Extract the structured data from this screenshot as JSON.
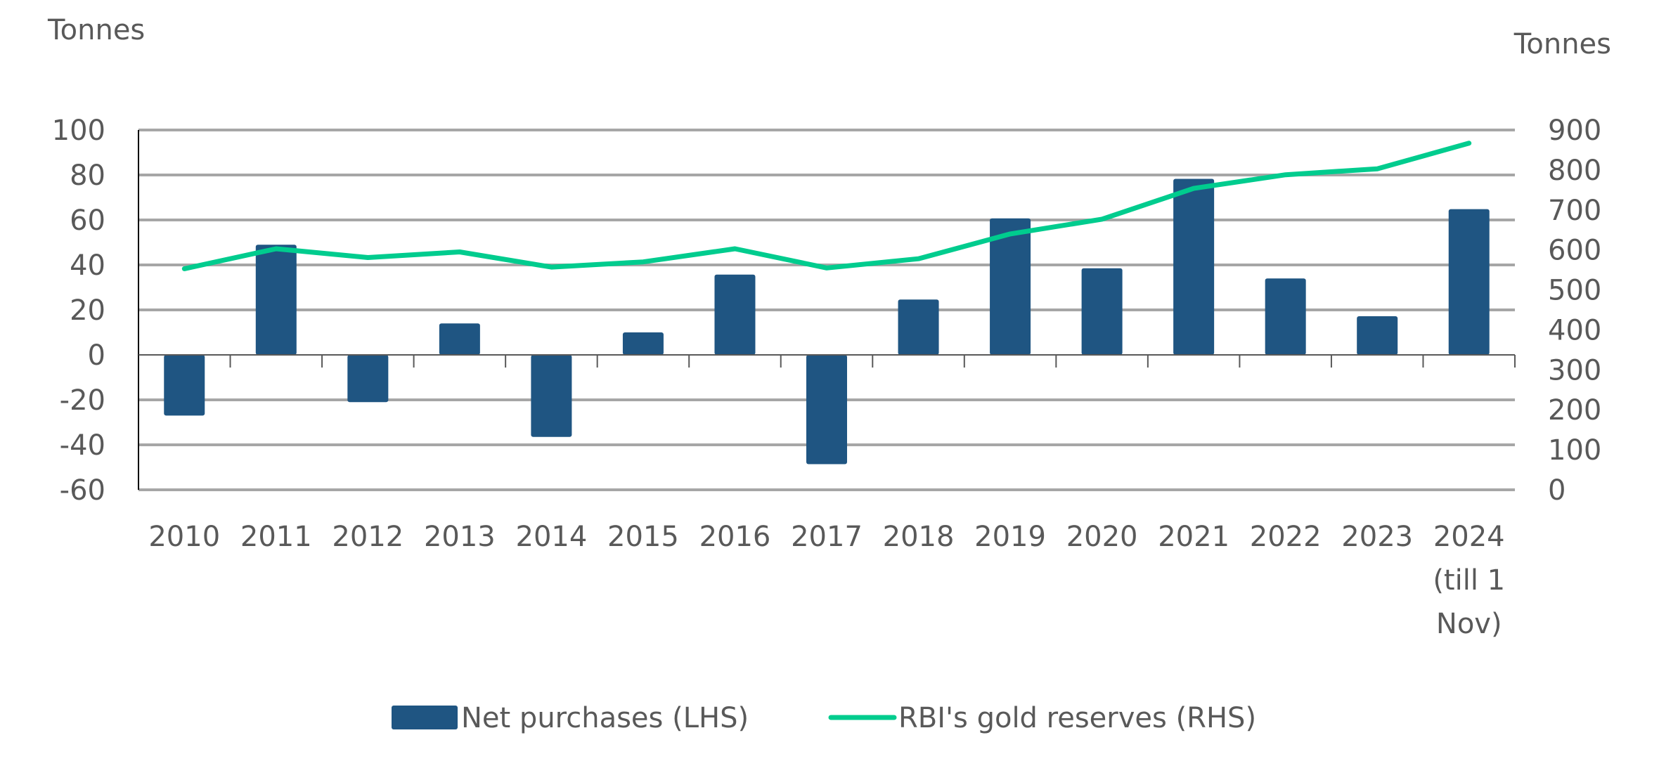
{
  "chart_data": {
    "type": "bar+line",
    "title": "",
    "categories": [
      "2010",
      "2011",
      "2012",
      "2013",
      "2014",
      "2015",
      "2016",
      "2017",
      "2018",
      "2019",
      "2020",
      "2021",
      "2022",
      "2023",
      "2024"
    ],
    "category_labels": [
      [
        "2010"
      ],
      [
        "2011"
      ],
      [
        "2012"
      ],
      [
        "2013"
      ],
      [
        "2014"
      ],
      [
        "2015"
      ],
      [
        "2016"
      ],
      [
        "2017"
      ],
      [
        "2018"
      ],
      [
        "2019"
      ],
      [
        "2020"
      ],
      [
        "2021"
      ],
      [
        "2022"
      ],
      [
        "2023"
      ],
      [
        "2024",
        "(till 1",
        "Nov)"
      ]
    ],
    "left_axis": {
      "label": "Tonnes",
      "range": [
        -60,
        100
      ],
      "ticks": [
        100,
        80,
        60,
        40,
        20,
        0,
        -20,
        -40,
        -60
      ]
    },
    "right_axis": {
      "label": "Tonnes",
      "range": [
        0,
        900
      ],
      "ticks": [
        900,
        800,
        700,
        600,
        500,
        400,
        300,
        200,
        100,
        0
      ]
    },
    "grid": true,
    "series": [
      {
        "name": "Net purchases (LHS)",
        "type": "bar",
        "axis": "left",
        "color": "#1f5582",
        "values": [
          -27,
          49,
          -21,
          14,
          -36.5,
          10,
          35.7,
          -48.6,
          24.6,
          60.7,
          38.5,
          78.3,
          34,
          17.2,
          64.8
        ]
      },
      {
        "name": "RBI's gold reserves (RHS)",
        "type": "line",
        "axis": "right",
        "color": "#00cc8e",
        "values": [
          553,
          603,
          581,
          595,
          557,
          570,
          603,
          555,
          578,
          640,
          677,
          754,
          788,
          803,
          867
        ]
      }
    ],
    "legend": {
      "placement": "bottom-center",
      "items": [
        "Net purchases (LHS)",
        "RBI's gold reserves (RHS)"
      ]
    }
  }
}
